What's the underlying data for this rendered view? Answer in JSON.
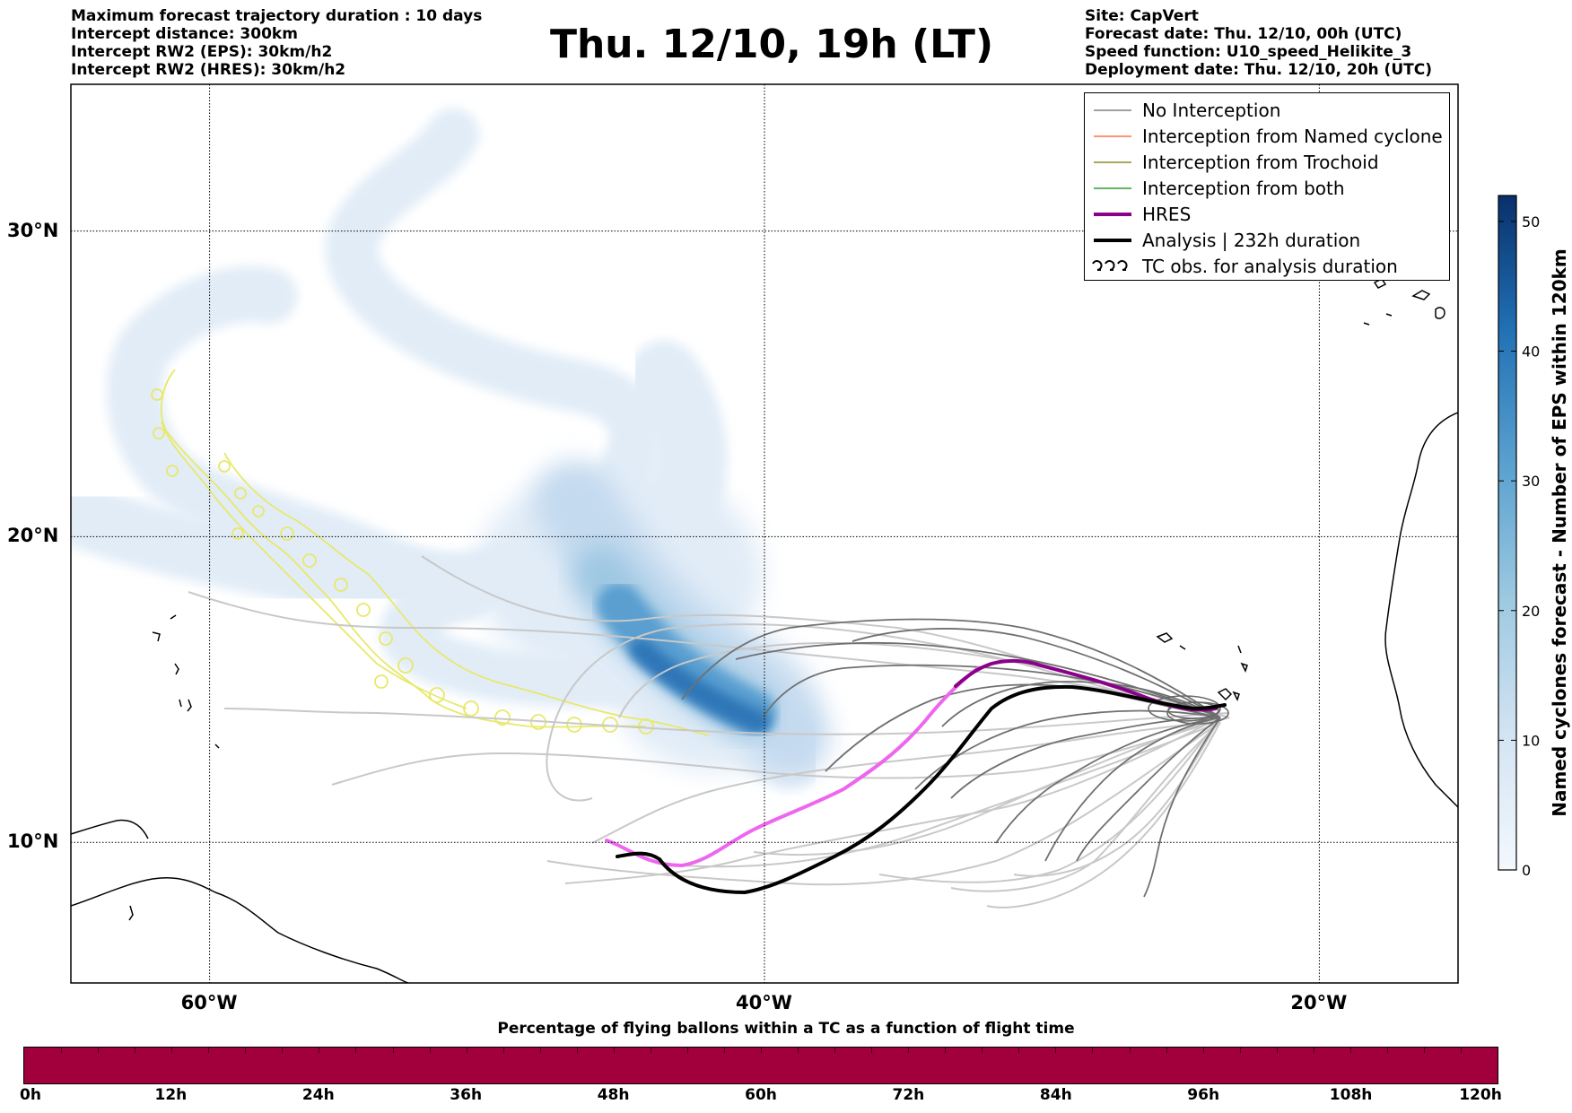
{
  "header_left": [
    "Maximum forecast trajectory duration : 10 days",
    "Intercept distance: 300km",
    "Intercept RW2 (EPS):  30km/h2",
    "Intercept RW2 (HRES): 30km/h2"
  ],
  "header_right": [
    "Site: CapVert",
    "Forecast date: Thu. 12/10, 00h (UTC)",
    "Speed function: U10_speed_Helikite_3",
    "Deployment date: Thu. 12/10, 20h (UTC)"
  ],
  "title": "Thu. 12/10, 19h (LT)",
  "map": {
    "lat_labels": [
      "30°N",
      "20°N",
      "10°N"
    ],
    "lon_labels": [
      "60°W",
      "40°W",
      "20°W"
    ],
    "lat_values": [
      30,
      20,
      10
    ],
    "lon_values": [
      -60,
      -40,
      -20
    ],
    "extent": {
      "lon_min": -65,
      "lon_max": -15,
      "lat_min": 5.4,
      "lat_max": 34.8
    }
  },
  "legend": {
    "items": [
      {
        "label": "No Interception",
        "color": "#808080",
        "style": "thin"
      },
      {
        "label": "Interception from Named cyclone",
        "color": "#ff7043",
        "style": "thin"
      },
      {
        "label": "Interception from Trochoid",
        "color": "#8b8b2c",
        "style": "thin"
      },
      {
        "label": "Interception from both",
        "color": "#2e9e2e",
        "style": "thin"
      },
      {
        "label": "HRES",
        "color": "#8b008b",
        "style": "thick"
      },
      {
        "label": "Analysis | 232h duration",
        "color": "#000000",
        "style": "thick"
      },
      {
        "label": "TC obs. for analysis duration",
        "color": "#000000",
        "style": "loops"
      }
    ]
  },
  "colorbar": {
    "title": "Named cyclones forecast - Number of EPS within 120km",
    "ticks": [
      "0",
      "10",
      "20",
      "30",
      "40",
      "50"
    ],
    "tick_values": [
      0,
      10,
      20,
      30,
      40,
      50
    ],
    "max_value": 52,
    "color_low": "#f3f8fd",
    "color_high": "#08306b"
  },
  "timebar": {
    "title": "Percentage of flying ballons within a TC as a function of flight time",
    "ticks": [
      "0h",
      "12h",
      "24h",
      "36h",
      "48h",
      "60h",
      "72h",
      "84h",
      "96h",
      "108h",
      "120h"
    ],
    "fill_color": "#a1003d"
  }
}
